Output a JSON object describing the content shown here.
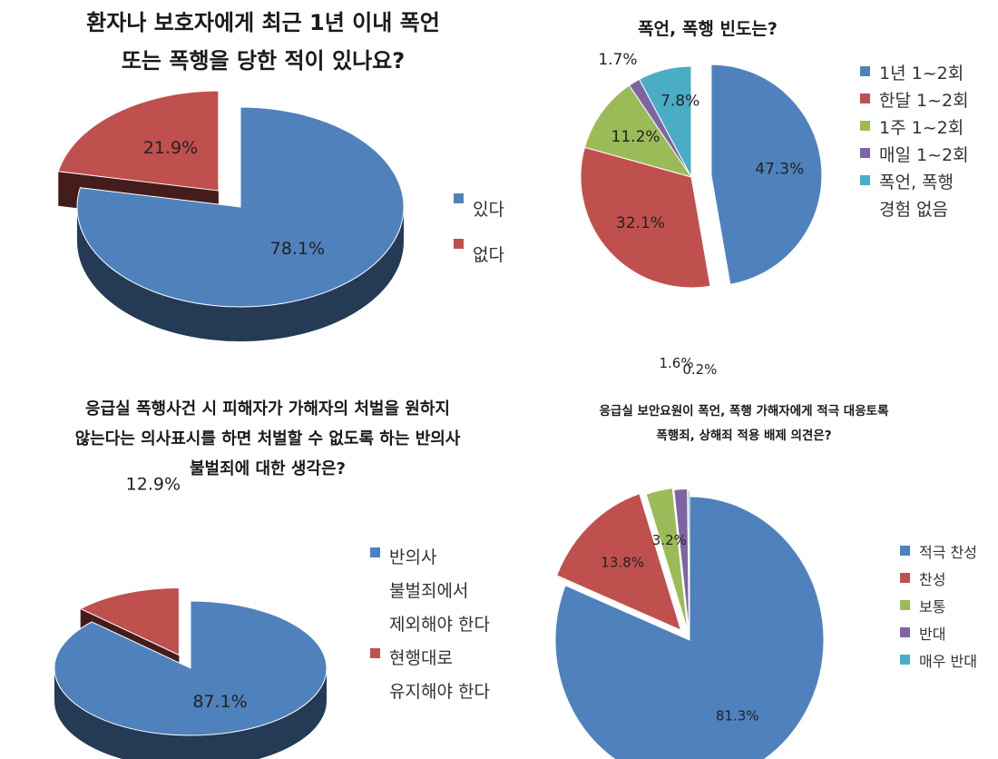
{
  "chart_data": [
    {
      "type": "pie",
      "title": "환자나 보호자에게 최근 1년 이내 폭언\n또는 폭행을 당한 적이 있나요?",
      "slices": [
        {
          "name": "있다",
          "value": 78.1,
          "label": "78.1%",
          "color": "#4f81bd"
        },
        {
          "name": "없다",
          "value": 21.9,
          "label": "21.9%",
          "color": "#c0504d"
        }
      ],
      "legend": "right"
    },
    {
      "type": "pie",
      "title": "폭언, 폭행 빈도는?",
      "slices": [
        {
          "name": "1년 1~2회",
          "value": 47.3,
          "label": "47.3%",
          "color": "#4f81bd"
        },
        {
          "name": "한달 1~2회",
          "value": 32.1,
          "label": "32.1%",
          "color": "#c0504d"
        },
        {
          "name": "1주 1~2회",
          "value": 11.2,
          "label": "11.2%",
          "color": "#9bbb59"
        },
        {
          "name": "매일 1~2회",
          "value": 1.7,
          "label": "1.7%",
          "color": "#8064a2"
        },
        {
          "name": "폭언, 폭행\n경험 없음",
          "value": 7.8,
          "label": "7.8%",
          "color": "#4bacc6"
        }
      ],
      "legend": "right"
    },
    {
      "type": "pie",
      "title": "응급실 폭행사건 시 피해자가 가해자의 처벌을 원하지\n않는다는 의사표시를 하면 처벌할 수 없도록 하는 반의사\n불벌죄에 대한 생각은?",
      "slices": [
        {
          "name": "반의사\n불벌죄에서\n제외해야 한다",
          "value": 87.1,
          "label": "87.1%",
          "color": "#4f81bd"
        },
        {
          "name": "현행대로\n유지해야 한다",
          "value": 12.9,
          "label": "12.9%",
          "color": "#c0504d"
        }
      ],
      "legend": "right"
    },
    {
      "type": "pie",
      "title": "응급실 보안요원이 폭언, 폭행 가해자에게 적극 대응토록\n폭행죄, 상해죄 적용 배제 의견은?",
      "slices": [
        {
          "name": "적극 찬성",
          "value": 81.3,
          "label": "81.3%",
          "color": "#4f81bd"
        },
        {
          "name": "찬성",
          "value": 13.8,
          "label": "13.8%",
          "color": "#c0504d"
        },
        {
          "name": "보통",
          "value": 3.2,
          "label": "3.2%",
          "color": "#9bbb59"
        },
        {
          "name": "반대",
          "value": 1.6,
          "label": "1.6%",
          "color": "#8064a2"
        },
        {
          "name": "매우 반대",
          "value": 0.2,
          "label": "0.2%",
          "color": "#4bacc6"
        }
      ],
      "legend": "right"
    }
  ]
}
